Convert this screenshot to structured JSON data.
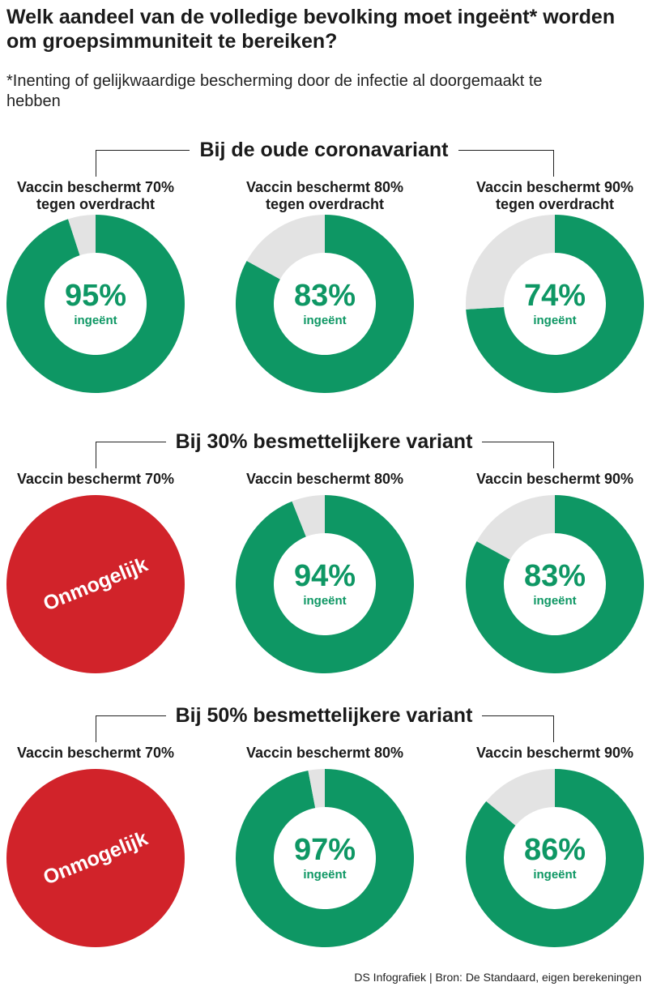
{
  "title": "Welk aandeel van de volledige bevolking moet ingeënt* worden om groepsimmuniteit te bereiken?",
  "subtitle": "*Inenting of gelijkwaardige bescherming door de infectie al doorgemaakt te hebben",
  "source": "DS Infografiek | Bron: De Standaard, eigen berekeningen",
  "colors": {
    "green": "#0e9764",
    "grey": "#e3e3e3",
    "red": "#d1232a"
  },
  "center_unit": "ingeënt",
  "chart_data": {
    "type": "pie",
    "sections": [
      {
        "heading": "Bij de oude coronavariant",
        "cells": [
          {
            "label": "Vaccin beschermt 70% tegen overdracht",
            "value": 95,
            "display": "95%",
            "impossible": false
          },
          {
            "label": "Vaccin beschermt 80% tegen overdracht",
            "value": 83,
            "display": "83%",
            "impossible": false
          },
          {
            "label": "Vaccin beschermt 90% tegen overdracht",
            "value": 74,
            "display": "74%",
            "impossible": false
          }
        ]
      },
      {
        "heading": "Bij 30% besmettelijkere variant",
        "cells": [
          {
            "label": "Vaccin beschermt 70%",
            "value": null,
            "display": "Onmogelijk",
            "impossible": true
          },
          {
            "label": "Vaccin beschermt 80%",
            "value": 94,
            "display": "94%",
            "impossible": false
          },
          {
            "label": "Vaccin beschermt 90%",
            "value": 83,
            "display": "83%",
            "impossible": false
          }
        ]
      },
      {
        "heading": "Bij 50% besmettelijkere variant",
        "cells": [
          {
            "label": "Vaccin beschermt 70%",
            "value": null,
            "display": "Onmogelijk",
            "impossible": true
          },
          {
            "label": "Vaccin beschermt 80%",
            "value": 97,
            "display": "97%",
            "impossible": false
          },
          {
            "label": "Vaccin beschermt 90%",
            "value": 86,
            "display": "86%",
            "impossible": false
          }
        ]
      }
    ]
  }
}
